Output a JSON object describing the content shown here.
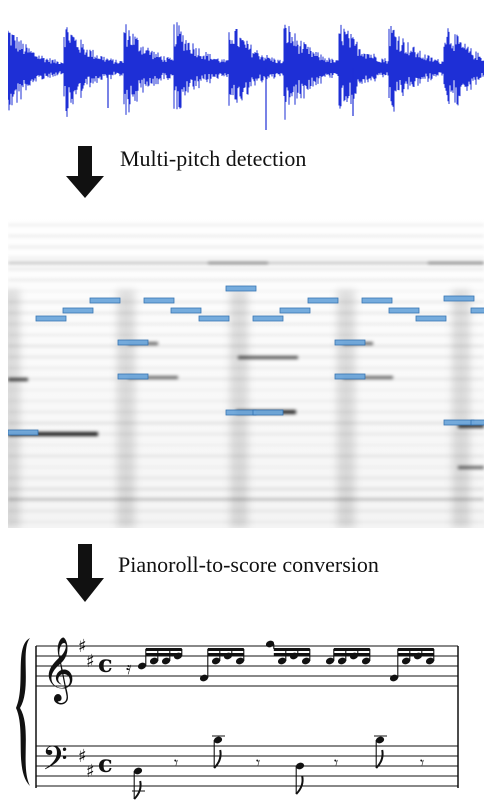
{
  "steps": {
    "step1_label": "Multi-pitch detection",
    "step2_label": "Pianoroll-to-score conversion"
  },
  "colors": {
    "waveform": "#1e2fd6",
    "note_box_fill": "#6fa8dc",
    "note_box_stroke": "#2f6fb0",
    "arrow": "#111111"
  },
  "score": {
    "treble_key": "D major (2 sharps)",
    "time_signature": "c"
  }
}
